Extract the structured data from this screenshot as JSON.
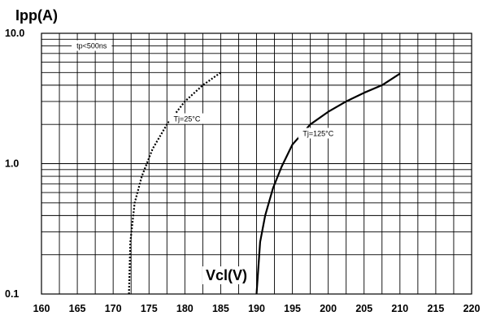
{
  "chart_data": {
    "type": "line",
    "ylabel": "Ipp(A)",
    "xlabel": "Vcl(V)",
    "xlim": [
      160,
      220
    ],
    "ylim": [
      0.1,
      10.0
    ],
    "yscale": "log",
    "x_ticks": [
      "160",
      "165",
      "170",
      "175",
      "180",
      "185",
      "190",
      "195",
      "200",
      "205",
      "210",
      "215",
      "220"
    ],
    "y_ticks": [
      {
        "value": 10.0,
        "label": "10.0"
      },
      {
        "value": 1.0,
        "label": "1.0"
      },
      {
        "value": 0.1,
        "label": "0.1"
      }
    ],
    "grid": true,
    "annotations": [
      {
        "text": "tp<500ns",
        "x": 167.0,
        "y": 8.0
      },
      {
        "text": "Tj=25°C",
        "x": 180.3,
        "y": 2.2
      },
      {
        "text": "Tj=125°C",
        "x": 198.6,
        "y": 1.7
      }
    ],
    "series": [
      {
        "name": "Tj=25°C",
        "style": "dotted",
        "x": [
          172.2,
          172.4,
          173.0,
          174.0,
          175.5,
          177.5,
          180.0,
          182.5,
          185.0
        ],
        "y": [
          0.1,
          0.25,
          0.5,
          0.8,
          1.3,
          2.0,
          3.0,
          4.0,
          5.0
        ]
      },
      {
        "name": "Tj=125°C",
        "style": "solid",
        "x": [
          190.0,
          190.5,
          191.2,
          192.3,
          193.5,
          195.0,
          197.5,
          200.0,
          202.5,
          205.0,
          207.5,
          210.0
        ],
        "y": [
          0.1,
          0.25,
          0.4,
          0.65,
          0.95,
          1.4,
          2.0,
          2.5,
          3.0,
          3.5,
          4.0,
          4.9
        ]
      }
    ]
  }
}
